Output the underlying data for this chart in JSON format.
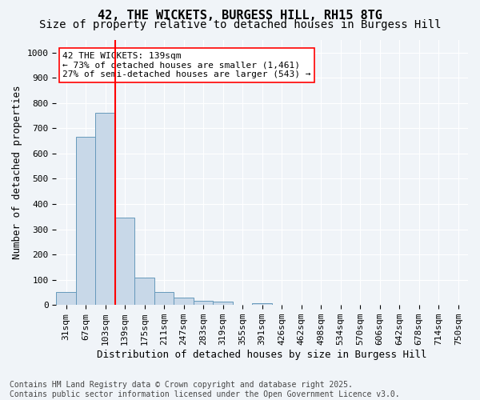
{
  "title_line1": "42, THE WICKETS, BURGESS HILL, RH15 8TG",
  "title_line2": "Size of property relative to detached houses in Burgess Hill",
  "xlabel": "Distribution of detached houses by size in Burgess Hill",
  "ylabel": "Number of detached properties",
  "bins": [
    "31sqm",
    "67sqm",
    "103sqm",
    "139sqm",
    "175sqm",
    "211sqm",
    "247sqm",
    "283sqm",
    "319sqm",
    "355sqm",
    "391sqm",
    "426sqm",
    "462sqm",
    "498sqm",
    "534sqm",
    "570sqm",
    "606sqm",
    "642sqm",
    "678sqm",
    "714sqm",
    "750sqm"
  ],
  "bar_heights": [
    52,
    667,
    762,
    345,
    110,
    52,
    28,
    18,
    12,
    0,
    8,
    0,
    0,
    0,
    0,
    0,
    0,
    0,
    0,
    0,
    0
  ],
  "bar_color": "#c8d8e8",
  "bar_edge_color": "#6699bb",
  "vline_x_index": 3,
  "vline_color": "red",
  "annotation_text": "42 THE WICKETS: 139sqm\n← 73% of detached houses are smaller (1,461)\n27% of semi-detached houses are larger (543) →",
  "annotation_box_color": "white",
  "annotation_box_edge_color": "red",
  "ylim": [
    0,
    1050
  ],
  "yticks": [
    0,
    100,
    200,
    300,
    400,
    500,
    600,
    700,
    800,
    900,
    1000
  ],
  "footnote": "Contains HM Land Registry data © Crown copyright and database right 2025.\nContains public sector information licensed under the Open Government Licence v3.0.",
  "background_color": "#f0f4f8",
  "grid_color": "#ffffff",
  "title_fontsize": 11,
  "subtitle_fontsize": 10,
  "axis_label_fontsize": 9,
  "tick_fontsize": 8,
  "annotation_fontsize": 8,
  "footnote_fontsize": 7
}
